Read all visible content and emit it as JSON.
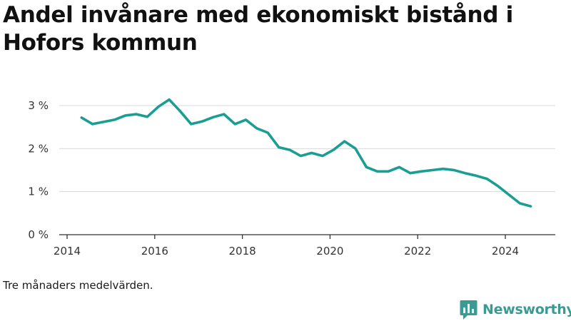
{
  "header": {
    "title": "Andel invånare med ekonomiskt bistånd i Hofors kommun"
  },
  "footer": {
    "note": "Tre månaders medelvärden.",
    "brand": "Newsworthy"
  },
  "colors": {
    "line": "#1a9e93",
    "grid": "#d9d9d9",
    "axis": "#333333",
    "brand": "#3a9b94"
  },
  "chart_data": {
    "type": "line",
    "title": "Andel invånare med ekonomiskt bistånd i Hofors kommun",
    "xlabel": "",
    "ylabel": "",
    "y_unit": "%",
    "xlim": [
      2014,
      2025.2
    ],
    "ylim": [
      0,
      3
    ],
    "x_ticks": [
      2014,
      2016,
      2018,
      2020,
      2022,
      2024
    ],
    "y_ticks": [
      {
        "value": 0,
        "label": "0 %"
      },
      {
        "value": 1,
        "label": "1 %"
      },
      {
        "value": 2,
        "label": "2 %"
      },
      {
        "value": 3,
        "label": "3 %"
      }
    ],
    "grid": "horizontal",
    "legend": "none",
    "series": [
      {
        "x": [
          2014.33,
          2014.58,
          2014.83,
          2015.08,
          2015.33,
          2015.58,
          2015.83,
          2016.08,
          2016.33,
          2016.58,
          2016.83,
          2017.08,
          2017.33,
          2017.58,
          2017.83,
          2018.08,
          2018.33,
          2018.58,
          2018.83,
          2019.08,
          2019.33,
          2019.58,
          2019.83,
          2020.08,
          2020.33,
          2020.58,
          2020.83,
          2021.08,
          2021.33,
          2021.58,
          2021.83,
          2022.08,
          2022.33,
          2022.58,
          2022.83,
          2023.08,
          2023.33,
          2023.58,
          2023.83,
          2024.08,
          2024.33,
          2024.58
        ],
        "values": [
          2.72,
          2.57,
          2.62,
          2.67,
          2.77,
          2.8,
          2.74,
          2.97,
          3.14,
          2.87,
          2.57,
          2.63,
          2.73,
          2.8,
          2.57,
          2.67,
          2.47,
          2.37,
          2.03,
          1.97,
          1.83,
          1.9,
          1.83,
          1.97,
          2.17,
          2.0,
          1.57,
          1.47,
          1.47,
          1.57,
          1.43,
          1.47,
          1.5,
          1.53,
          1.5,
          1.43,
          1.37,
          1.3,
          1.13,
          0.93,
          0.73,
          0.66
        ]
      }
    ]
  }
}
